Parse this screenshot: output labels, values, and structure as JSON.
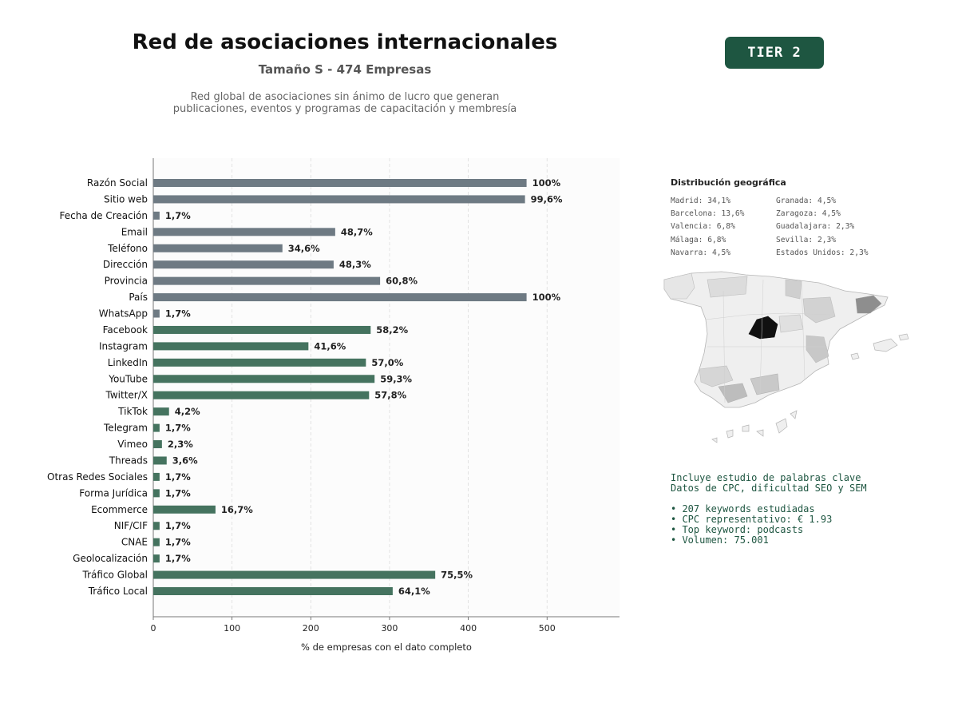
{
  "header": {
    "title": "Red de asociaciones internacionales",
    "subtitle": "Tamaño S - 474 Empresas",
    "description_line1": "Red global de asociaciones sin ánimo de lucro que generan",
    "description_line2": "publicaciones, eventos y programas de capacitación y membresía",
    "tier_badge": "TIER 2"
  },
  "colors": {
    "gray_bar": "#6e7a83",
    "green_bar": "#45735f",
    "badge": "#1e5641",
    "highlight_region": "#111111"
  },
  "chart_data": {
    "type": "bar",
    "orientation": "horizontal",
    "xlabel": "% de empresas con el dato completo",
    "xlim": [
      0,
      592
    ],
    "xticks": [
      0,
      100,
      200,
      300,
      400,
      500
    ],
    "grid": "vertical dashed",
    "categories": [
      "Razón Social",
      "Sitio web",
      "Fecha de Creación",
      "Email",
      "Teléfono",
      "Dirección",
      "Provincia",
      "País",
      "WhatsApp",
      "Facebook",
      "Instagram",
      "LinkedIn",
      "YouTube",
      "Twitter/X",
      "TikTok",
      "Telegram",
      "Vimeo",
      "Threads",
      "Otras Redes Sociales",
      "Forma Jurídica",
      "Ecommerce",
      "NIF/CIF",
      "CNAE",
      "Geolocalización",
      "Tráfico Global",
      "Tráfico Local"
    ],
    "values": [
      474,
      472,
      8,
      231,
      164,
      229,
      288,
      474,
      8,
      276,
      197,
      270,
      281,
      274,
      20,
      8,
      11,
      17,
      8,
      8,
      79,
      8,
      8,
      8,
      358,
      304
    ],
    "labels": [
      "100%",
      "99,6%",
      "1,7%",
      "48,7%",
      "34,6%",
      "48,3%",
      "60,8%",
      "100%",
      "1,7%",
      "58,2%",
      "41,6%",
      "57,0%",
      "59,3%",
      "57,8%",
      "4,2%",
      "1,7%",
      "2,3%",
      "3,6%",
      "1,7%",
      "1,7%",
      "16,7%",
      "1,7%",
      "1,7%",
      "1,7%",
      "75,5%",
      "64,1%"
    ],
    "bar_colors": [
      "gray",
      "gray",
      "gray",
      "gray",
      "gray",
      "gray",
      "gray",
      "gray",
      "gray",
      "green",
      "green",
      "green",
      "green",
      "green",
      "green",
      "green",
      "green",
      "green",
      "green",
      "green",
      "green",
      "green",
      "green",
      "green",
      "green",
      "green"
    ]
  },
  "geo": {
    "title": "Distribución geográfica",
    "items": [
      "Madrid: 34,1%",
      "Barcelona: 13,6%",
      "Valencia: 6,8%",
      "Málaga: 6,8%",
      "Navarra: 4,5%",
      "Granada: 4,5%",
      "Zaragoza: 4,5%",
      "Guadalajara: 2,3%",
      "Sevilla: 2,3%",
      "Estados Unidos: 2,3%"
    ]
  },
  "keywords": {
    "line1": "Incluye estudio de palabras clave",
    "line2": "Datos de CPC, dificultad SEO y SEM",
    "bullets": [
      "• 207 keywords estudiadas",
      "• CPC representativo: € 1.93",
      "• Top keyword: podcasts",
      "• Volumen: 75.001"
    ]
  }
}
